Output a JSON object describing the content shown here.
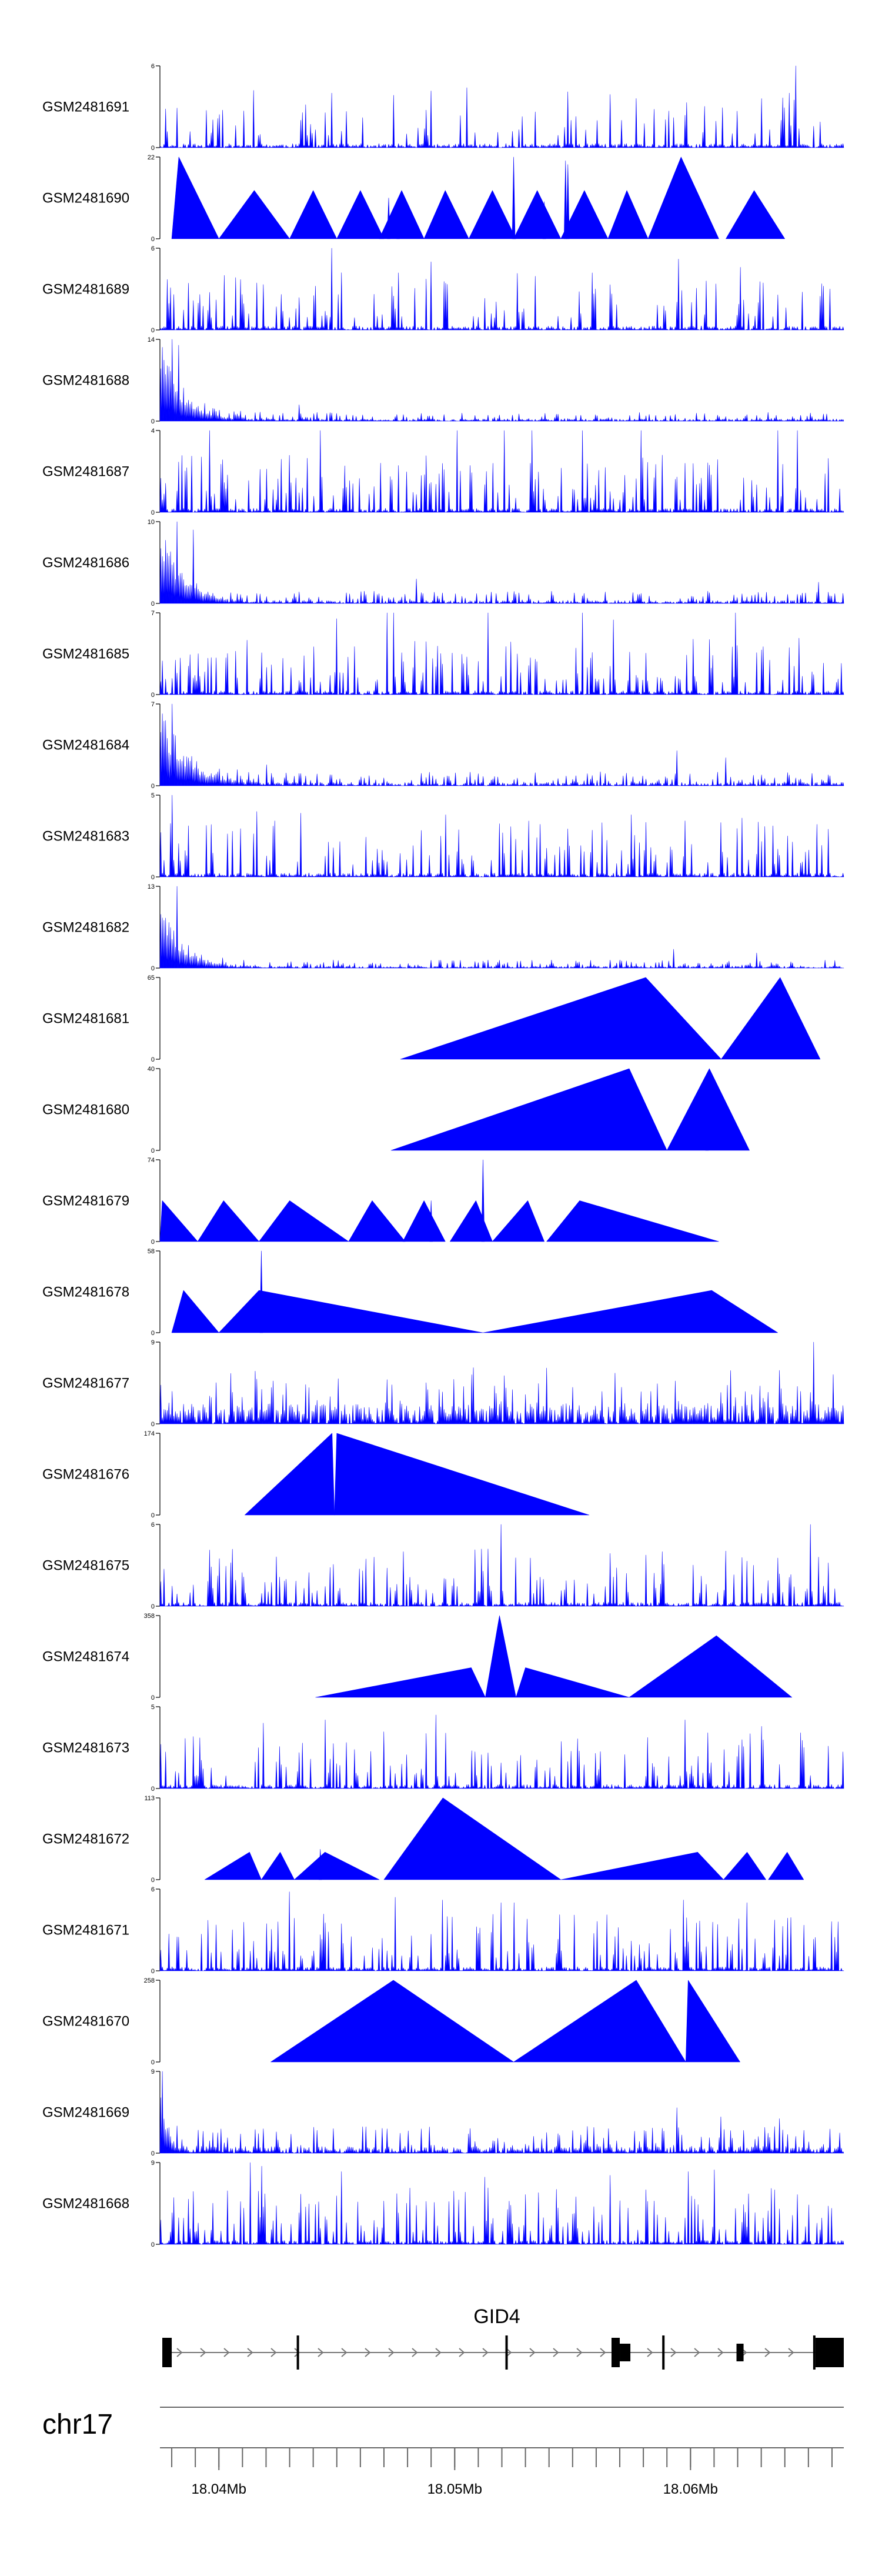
{
  "chart_data": {
    "type": "area",
    "title": "",
    "xlabel": "",
    "ylabel": "",
    "xlim": [
      18.0375,
      18.0665
    ],
    "series_color": "#0000ff",
    "series": [
      {
        "name": "GSM2481691",
        "ymax": 6,
        "ymin": 0,
        "profile": {
          "kind": "spiky",
          "seed": 11,
          "density": 0.22,
          "base": 0.05,
          "peaks": [
            [
              18.06445,
              6.0
            ],
            [
              18.0505,
              4.4
            ],
            [
              18.0415,
              4.2
            ],
            [
              18.0448,
              4.0
            ],
            [
              18.0642,
              4.0
            ],
            [
              18.063,
              3.6
            ]
          ]
        }
      },
      {
        "name": "GSM2481690",
        "ymax": 22,
        "ymin": 0,
        "profile": {
          "kind": "tri",
          "tris": [
            [
              18.038,
              18.0383,
              18.04,
              22
            ],
            [
              18.04,
              18.0415,
              18.043,
              13
            ],
            [
              18.043,
              18.044,
              18.045,
              13
            ],
            [
              18.045,
              18.046,
              18.047,
              13
            ],
            [
              18.0468,
              18.04775,
              18.0487,
              13
            ],
            [
              18.0487,
              18.0496,
              18.0506,
              13
            ],
            [
              18.0506,
              18.0516,
              18.0526,
              13
            ],
            [
              18.0525,
              18.0535,
              18.0545,
              13
            ],
            [
              18.0545,
              18.0555,
              18.0565,
              13
            ],
            [
              18.0565,
              18.0573,
              18.0582,
              13
            ],
            [
              18.0582,
              18.0596,
              18.0612,
              22
            ],
            [
              18.0615,
              18.0627,
              18.064,
              13
            ]
          ],
          "spikes": [
            [
              18.0525,
              22
            ],
            [
              18.0547,
              21
            ],
            [
              18.0548,
              20
            ],
            [
              18.0472,
              11
            ],
            [
              18.0476,
              11
            ],
            [
              18.0538,
              10
            ]
          ]
        }
      },
      {
        "name": "GSM2481689",
        "ymax": 6,
        "ymin": 0,
        "profile": {
          "kind": "spiky",
          "seed": 23,
          "density": 0.24,
          "base": 0.05,
          "peaks": [
            [
              18.0448,
              6.0
            ],
            [
              18.049,
              5.0
            ],
            [
              18.0595,
              5.2
            ],
            [
              18.0621,
              4.6
            ],
            [
              18.0452,
              4.2
            ]
          ]
        }
      },
      {
        "name": "GSM2481688",
        "ymax": 14,
        "ymin": 0,
        "profile": {
          "kind": "decay",
          "seed": 31,
          "start": 18.0375,
          "amp": 14,
          "tau": 0.0009,
          "noise": 1.5,
          "peaks": [
            [
              18.0434,
              2.8
            ],
            [
              18.038,
              14
            ],
            [
              18.0383,
              13
            ]
          ]
        }
      },
      {
        "name": "GSM2481687",
        "ymax": 4,
        "ymin": 0,
        "profile": {
          "kind": "spiky",
          "seed": 37,
          "density": 0.3,
          "base": 0.05,
          "peaks": [
            [
              18.0396,
              4.0
            ],
            [
              18.0443,
              4.0
            ],
            [
              18.0501,
              4.0
            ],
            [
              18.0521,
              4.0
            ],
            [
              18.0533,
              4.0
            ],
            [
              18.0554,
              4.0
            ],
            [
              18.0579,
              4.0
            ],
            [
              18.0637,
              4.0
            ],
            [
              18.0645,
              4.0
            ]
          ]
        }
      },
      {
        "name": "GSM2481686",
        "ymax": 10,
        "ymin": 0,
        "profile": {
          "kind": "decay",
          "seed": 41,
          "start": 18.0375,
          "amp": 10,
          "tau": 0.0009,
          "noise": 1.5,
          "peaks": [
            [
              18.0382,
              10
            ],
            [
              18.0389,
              9
            ],
            [
              18.0484,
              3.0
            ],
            [
              18.0654,
              2.6
            ]
          ]
        }
      },
      {
        "name": "GSM2481685",
        "ymax": 7,
        "ymin": 0,
        "profile": {
          "kind": "spiky",
          "seed": 53,
          "density": 0.3,
          "base": 0.05,
          "peaks": [
            [
              18.0471,
              7.0
            ],
            [
              18.0474,
              7.0
            ],
            [
              18.0514,
              7.0
            ],
            [
              18.0554,
              7.0
            ],
            [
              18.0619,
              7.0
            ],
            [
              18.0567,
              6.4
            ],
            [
              18.045,
              6.5
            ]
          ]
        }
      },
      {
        "name": "GSM2481684",
        "ymax": 7,
        "ymin": 0,
        "profile": {
          "kind": "decay",
          "seed": 59,
          "start": 18.0375,
          "amp": 7,
          "tau": 0.0011,
          "noise": 1.2,
          "peaks": [
            [
              18.038,
              7.0
            ],
            [
              18.0594,
              3.0
            ],
            [
              18.0615,
              2.4
            ],
            [
              18.042,
              1.8
            ]
          ]
        }
      },
      {
        "name": "GSM2481683",
        "ymax": 5,
        "ymin": 0,
        "profile": {
          "kind": "spiky",
          "seed": 61,
          "density": 0.3,
          "base": 0.05,
          "peaks": [
            [
              18.038,
              5.0
            ],
            [
              18.0416,
              4.0
            ],
            [
              18.0435,
              3.9
            ],
            [
              18.0496,
              3.8
            ],
            [
              18.0575,
              3.8
            ],
            [
              18.0622,
              3.6
            ]
          ]
        }
      },
      {
        "name": "GSM2481682",
        "ymax": 13,
        "ymin": 0,
        "profile": {
          "kind": "decay",
          "seed": 67,
          "start": 18.0375,
          "amp": 13,
          "tau": 0.0008,
          "noise": 1.3,
          "peaks": [
            [
              18.0382,
              13
            ],
            [
              18.0593,
              3.0
            ],
            [
              18.0628,
              2.4
            ]
          ]
        }
      },
      {
        "name": "GSM2481681",
        "ymax": 65,
        "ymin": 0,
        "profile": {
          "kind": "tri",
          "tris": [
            [
              18.0477,
              18.0581,
              18.0613,
              65
            ],
            [
              18.0613,
              18.0638,
              18.0655,
              65
            ]
          ],
          "spikes": []
        }
      },
      {
        "name": "GSM2481680",
        "ymax": 40,
        "ymin": 0,
        "profile": {
          "kind": "tri",
          "tris": [
            [
              18.0473,
              18.0574,
              18.059,
              40
            ],
            [
              18.059,
              18.0608,
              18.0625,
              40
            ]
          ],
          "spikes": [
            [
              18.0607,
              30
            ]
          ]
        }
      },
      {
        "name": "GSM2481679",
        "ymax": 74,
        "ymin": 0,
        "profile": {
          "kind": "tri",
          "tris": [
            [
              18.0375,
              18.0376,
              18.0391,
              37
            ],
            [
              18.0391,
              18.0402,
              18.0417,
              37
            ],
            [
              18.0417,
              18.043,
              18.0455,
              37
            ],
            [
              18.0455,
              18.0465,
              18.0479,
              37
            ],
            [
              18.0478,
              18.0487,
              18.0496,
              37
            ],
            [
              18.0498,
              18.0509,
              18.0516,
              37
            ],
            [
              18.0516,
              18.0531,
              18.0538,
              37
            ],
            [
              18.0539,
              18.0553,
              18.0612,
              37
            ]
          ],
          "spikes": [
            [
              18.0512,
              74
            ],
            [
              18.049,
              37
            ]
          ]
        }
      },
      {
        "name": "GSM2481678",
        "ymax": 58,
        "ymin": 0,
        "profile": {
          "kind": "tri",
          "tris": [
            [
              18.038,
              18.0385,
              18.04,
              30
            ],
            [
              18.04,
              18.0417,
              18.0512,
              30
            ],
            [
              18.0512,
              18.0609,
              18.0637,
              30
            ]
          ],
          "spikes": [
            [
              18.0418,
              58
            ]
          ]
        }
      },
      {
        "name": "GSM2481677",
        "ymax": 9,
        "ymin": 0,
        "profile": {
          "kind": "spiky",
          "seed": 71,
          "density": 0.3,
          "base": 0.25,
          "peaks": [
            [
              18.0652,
              9.0
            ],
            [
              18.0422,
              4.0
            ],
            [
              18.0418,
              3.8
            ],
            [
              18.0427,
              3.2
            ],
            [
              18.0447,
              3.0
            ]
          ]
        }
      },
      {
        "name": "GSM2481676",
        "ymax": 174,
        "ymin": 0,
        "profile": {
          "kind": "tri",
          "tris": [
            [
              18.0411,
              18.0448,
              18.0449,
              174
            ],
            [
              18.0449,
              18.045,
              18.0557,
              174
            ]
          ],
          "spikes": []
        }
      },
      {
        "name": "GSM2481675",
        "ymax": 6,
        "ymin": 0,
        "profile": {
          "kind": "spiky",
          "seed": 79,
          "density": 0.28,
          "base": 0.05,
          "peaks": [
            [
              18.052,
              6.0
            ],
            [
              18.0651,
              6.0
            ],
            [
              18.0478,
              4.0
            ],
            [
              18.0514,
              4.2
            ],
            [
              18.0588,
              4.0
            ]
          ]
        }
      },
      {
        "name": "GSM2481674",
        "ymax": 358,
        "ymin": 0,
        "profile": {
          "kind": "tri",
          "tris": [
            [
              18.0441,
              18.0507,
              18.0513,
              130
            ],
            [
              18.0513,
              18.0519,
              18.0526,
              358
            ],
            [
              18.0526,
              18.053,
              18.0574,
              130
            ],
            [
              18.0574,
              18.0611,
              18.0643,
              270
            ]
          ],
          "spikes": []
        }
      },
      {
        "name": "GSM2481673",
        "ymax": 5,
        "ymin": 0,
        "profile": {
          "kind": "spiky",
          "seed": 83,
          "density": 0.28,
          "base": 0.05,
          "peaks": [
            [
              18.0492,
              4.5
            ],
            [
              18.0598,
              4.2
            ],
            [
              18.0445,
              4.2
            ],
            [
              18.0419,
              4.0
            ],
            [
              18.063,
              3.8
            ]
          ]
        }
      },
      {
        "name": "GSM2481672",
        "ymax": 113,
        "ymin": 0,
        "profile": {
          "kind": "tri",
          "tris": [
            [
              18.0394,
              18.0413,
              18.0418,
              38
            ],
            [
              18.0418,
              18.0426,
              18.0432,
              38
            ],
            [
              18.0432,
              18.0445,
              18.0468,
              38
            ],
            [
              18.047,
              18.0495,
              18.0545,
              113
            ],
            [
              18.0545,
              18.0603,
              18.0614,
              38
            ],
            [
              18.0614,
              18.0624,
              18.0632,
              38
            ],
            [
              18.0633,
              18.0641,
              18.0648,
              38
            ]
          ],
          "spikes": [
            [
              18.0443,
              42
            ]
          ]
        }
      },
      {
        "name": "GSM2481671",
        "ymax": 6,
        "ymin": 0,
        "profile": {
          "kind": "spiky",
          "seed": 89,
          "density": 0.3,
          "base": 0.05,
          "peaks": [
            [
              18.043,
              5.8
            ],
            [
              18.0475,
              5.4
            ],
            [
              18.0495,
              5.2
            ],
            [
              18.052,
              5.0
            ],
            [
              18.0525,
              5.0
            ],
            [
              18.0597,
              5.2
            ],
            [
              18.0624,
              5.0
            ]
          ]
        }
      },
      {
        "name": "GSM2481670",
        "ymax": 258,
        "ymin": 0,
        "profile": {
          "kind": "tri",
          "tris": [
            [
              18.0422,
              18.0474,
              18.0525,
              258
            ],
            [
              18.0525,
              18.0577,
              18.0598,
              258
            ],
            [
              18.0598,
              18.0599,
              18.0621,
              258
            ]
          ],
          "spikes": []
        }
      },
      {
        "name": "GSM2481669",
        "ymax": 9,
        "ymin": 0,
        "profile": {
          "kind": "decay",
          "seed": 97,
          "start": 18.0375,
          "amp": 9,
          "tau": 0.0003,
          "noise": 3.0,
          "peaks": [
            [
              18.0376,
              9.0
            ],
            [
              18.0594,
              5.0
            ],
            [
              18.0613,
              4.0
            ],
            [
              18.0638,
              3.8
            ]
          ]
        }
      },
      {
        "name": "GSM2481668",
        "ymax": 9,
        "ymin": 0,
        "profile": {
          "kind": "spiky",
          "seed": 101,
          "density": 0.3,
          "base": 0.05,
          "peaks": [
            [
              18.0413,
              9.0
            ],
            [
              18.0418,
              8.6
            ],
            [
              18.0452,
              8.0
            ],
            [
              18.0513,
              7.4
            ],
            [
              18.0566,
              7.6
            ],
            [
              18.0599,
              8.0
            ],
            [
              18.061,
              8.2
            ],
            [
              18.0636,
              6.0
            ]
          ]
        }
      }
    ],
    "gene": {
      "name": "GID4",
      "exons": [
        [
          18.0376,
          18.038,
          "big"
        ],
        [
          18.0381,
          18.038,
          "skip"
        ],
        [
          18.04335,
          18.04345,
          "line"
        ],
        [
          18.0522,
          18.0523,
          "line"
        ],
        [
          18.05665,
          18.057,
          "big"
        ],
        [
          18.057,
          18.05745,
          "mid"
        ],
        [
          18.05885,
          18.05895,
          "line"
        ],
        [
          18.06195,
          18.06225,
          "mid"
        ],
        [
          18.06525,
          18.06535,
          "line"
        ],
        [
          18.0653,
          18.0665,
          "big"
        ]
      ],
      "strand": "+"
    },
    "genome_axis": {
      "chromosome": "chr17",
      "ticks": [
        18.04,
        18.05,
        18.06
      ],
      "tick_labels": [
        "18.04Mb",
        "18.05Mb",
        "18.06Mb"
      ],
      "minor_step": 0.001
    }
  }
}
